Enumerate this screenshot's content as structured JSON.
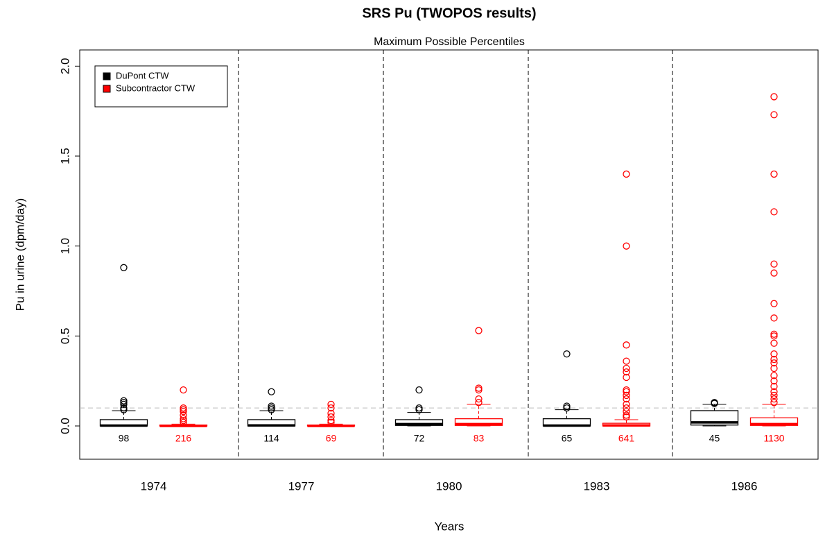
{
  "chart_data": {
    "type": "boxplot",
    "title": "SRS Pu (TWOPOS results)",
    "subtitle": "Maximum Possible Percentiles",
    "x_label": "Years",
    "y_label": "Pu in urine (dpm/day)",
    "categories": [
      "1974",
      "1977",
      "1980",
      "1983",
      "1986"
    ],
    "ylim": [
      -0.185,
      2.09
    ],
    "yticks": [
      {
        "value": 0,
        "label": "0.0"
      },
      {
        "value": 0.5,
        "label": "0.5"
      },
      {
        "value": 1,
        "label": "1.0"
      },
      {
        "value": 1.5,
        "label": "1.5"
      },
      {
        "value": 2,
        "label": "2.0"
      }
    ],
    "reference_line": 0.1,
    "legend": "top-left",
    "series": [
      {
        "name": "DuPont CTW",
        "color": "#000000",
        "boxes": [
          {
            "whislo": 0,
            "q1": 0,
            "med": 0.002,
            "q3": 0.035,
            "whishi": 0.085,
            "fliers": [
              0.88,
              0.14,
              0.13,
              0.12,
              0.1,
              0.09
            ],
            "n": 98
          },
          {
            "whislo": 0,
            "q1": 0,
            "med": 0.003,
            "q3": 0.035,
            "whishi": 0.085,
            "fliers": [
              0.19,
              0.11,
              0.1,
              0.09
            ],
            "n": 114
          },
          {
            "whislo": 0,
            "q1": 0.003,
            "med": 0.01,
            "q3": 0.035,
            "whishi": 0.075,
            "fliers": [
              0.2,
              0.1,
              0.09
            ],
            "n": 72
          },
          {
            "whislo": 0,
            "q1": 0,
            "med": 0.002,
            "q3": 0.04,
            "whishi": 0.09,
            "fliers": [
              0.4,
              0.11,
              0.1
            ],
            "n": 65
          },
          {
            "whislo": 0,
            "q1": 0.005,
            "med": 0.02,
            "q3": 0.085,
            "whishi": 0.12,
            "fliers": [
              0.13,
              0.125
            ],
            "n": 45
          }
        ]
      },
      {
        "name": "Subcontractor CTW",
        "color": "#ff0000",
        "boxes": [
          {
            "whislo": 0,
            "q1": 0,
            "med": 0,
            "q3": 0.005,
            "whishi": 0.01,
            "fliers": [
              0.2,
              0.1,
              0.09,
              0.08,
              0.06,
              0.04,
              0.03,
              0.02
            ],
            "n": 216
          },
          {
            "whislo": 0,
            "q1": 0,
            "med": 0,
            "q3": 0.005,
            "whishi": 0.01,
            "fliers": [
              0.12,
              0.1,
              0.07,
              0.05,
              0.03,
              0.02
            ],
            "n": 69
          },
          {
            "whislo": 0,
            "q1": 0.003,
            "med": 0.01,
            "q3": 0.04,
            "whishi": 0.12,
            "fliers": [
              0.53,
              0.21,
              0.2,
              0.15,
              0.13
            ],
            "n": 83
          },
          {
            "whislo": 0,
            "q1": 0,
            "med": 0.003,
            "q3": 0.015,
            "whishi": 0.035,
            "fliers": [
              1.4,
              1.0,
              0.45,
              0.36,
              0.32,
              0.3,
              0.27,
              0.2,
              0.19,
              0.17,
              0.15,
              0.12,
              0.1,
              0.08,
              0.06,
              0.05
            ],
            "n": 641
          },
          {
            "whislo": 0,
            "q1": 0.003,
            "med": 0.01,
            "q3": 0.045,
            "whishi": 0.12,
            "fliers": [
              1.83,
              1.73,
              1.4,
              1.19,
              0.9,
              0.85,
              0.68,
              0.6,
              0.51,
              0.5,
              0.46,
              0.4,
              0.37,
              0.35,
              0.32,
              0.28,
              0.25,
              0.22,
              0.19,
              0.17,
              0.15,
              0.13
            ],
            "n": 1130
          }
        ]
      }
    ]
  }
}
